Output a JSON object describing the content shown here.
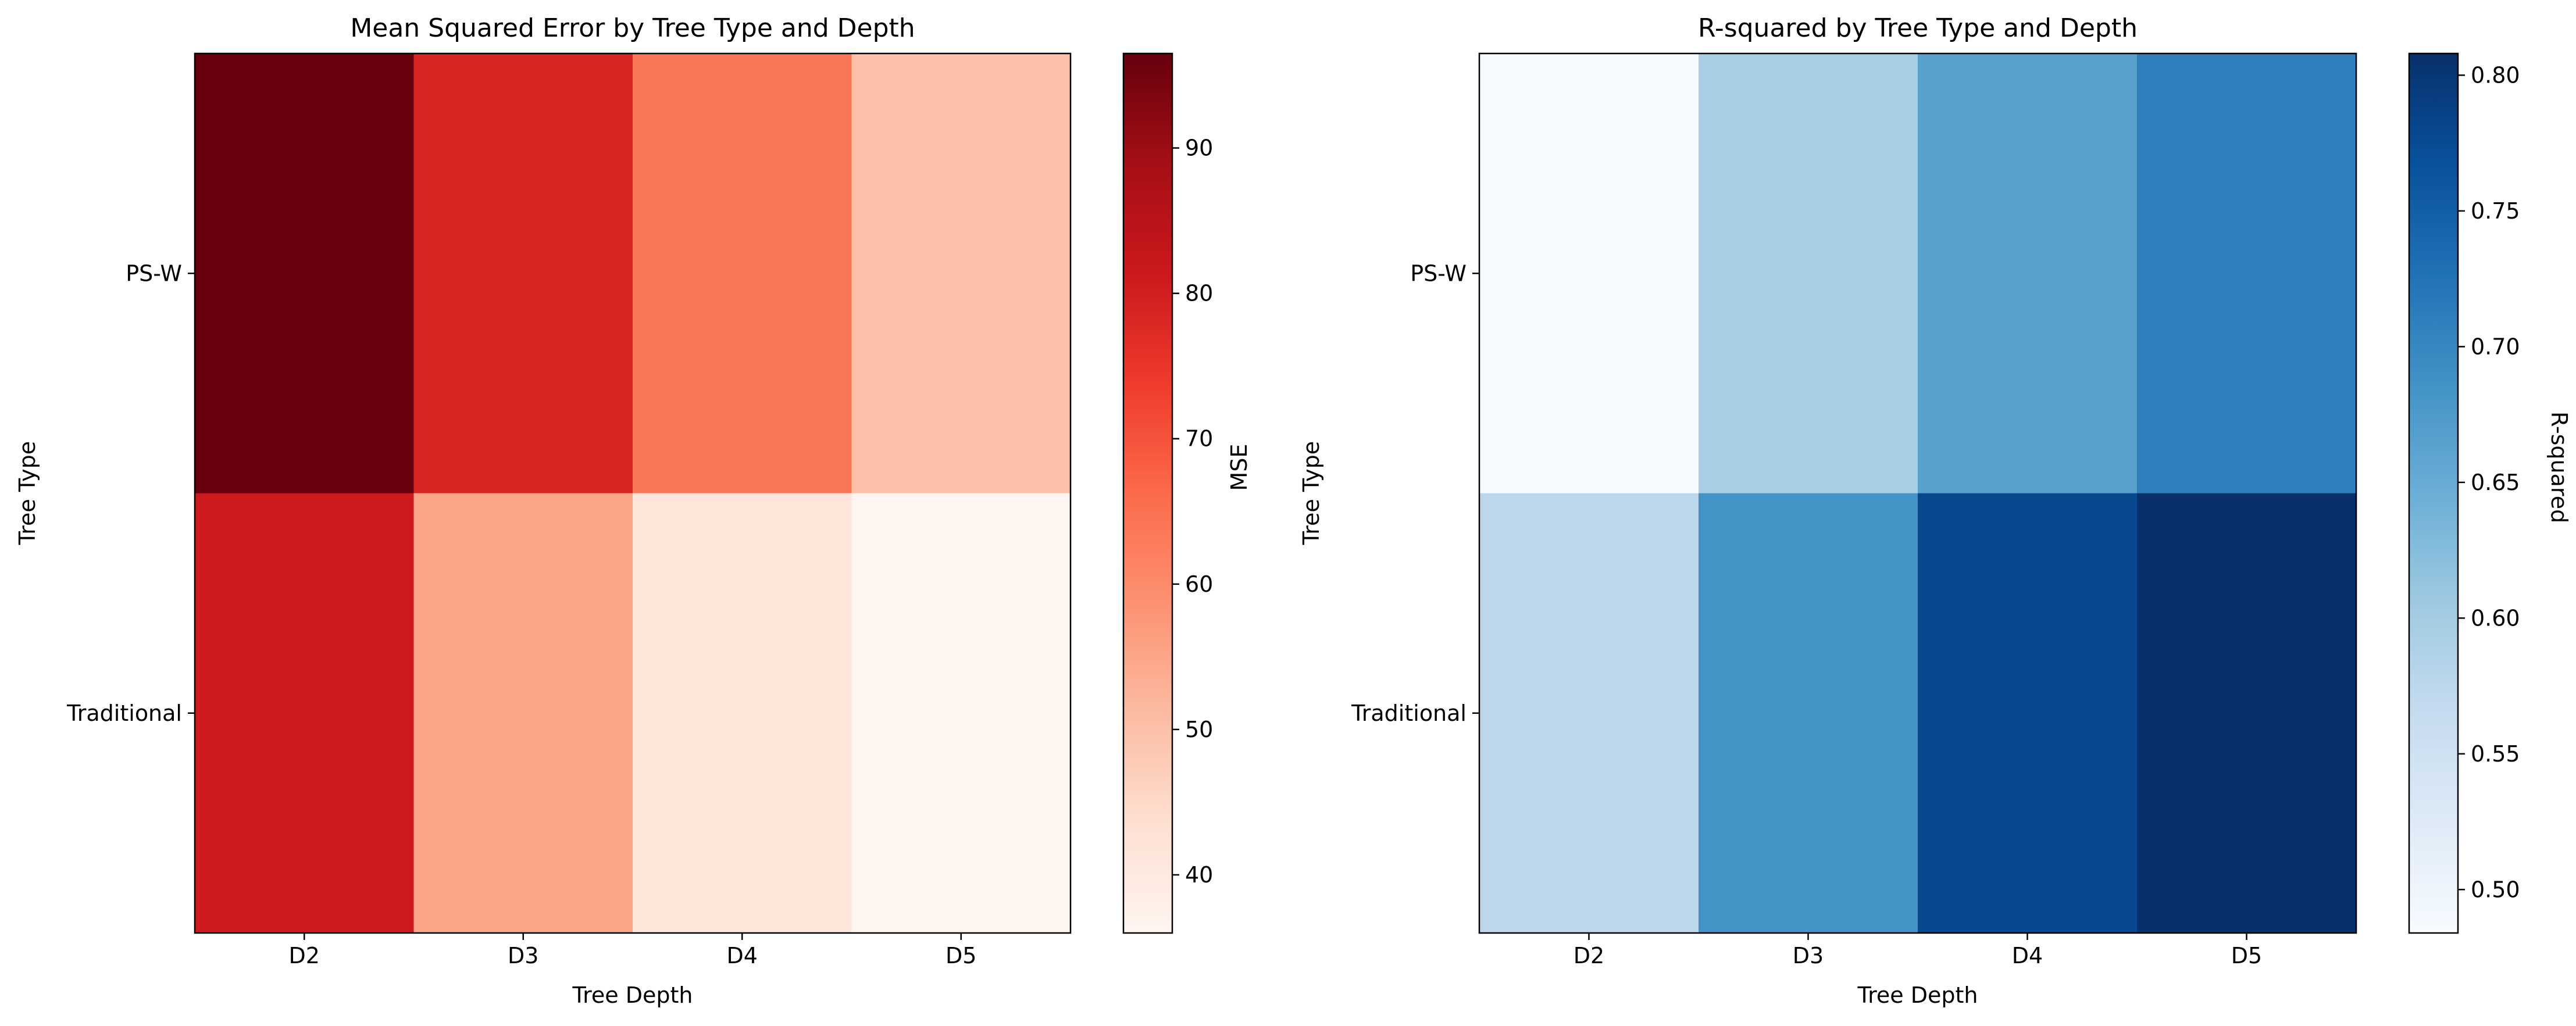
{
  "chart_data": [
    {
      "type": "heatmap",
      "title": "Mean Squared Error by Tree Type and Depth",
      "xlabel": "Tree Depth",
      "ylabel": "Tree Type",
      "x_categories": [
        "D2",
        "D3",
        "D4",
        "D5"
      ],
      "y_categories": [
        "PS-W",
        "Traditional"
      ],
      "values": [
        [
          96.5,
          78.5,
          64.0,
          50.0
        ],
        [
          81.0,
          55.0,
          41.5,
          36.0
        ]
      ],
      "colormap": "Reds",
      "colorbar": {
        "label": "MSE",
        "min": 36.0,
        "max": 96.5,
        "ticks": [
          40,
          50,
          60,
          70,
          80,
          90
        ],
        "tick_labels": [
          "40",
          "50",
          "60",
          "70",
          "80",
          "90"
        ]
      }
    },
    {
      "type": "heatmap",
      "title": "R-squared by Tree Type and Depth",
      "xlabel": "Tree Depth",
      "ylabel": "Tree Type",
      "x_categories": [
        "D2",
        "D3",
        "D4",
        "D5"
      ],
      "y_categories": [
        "PS-W",
        "Traditional"
      ],
      "values": [
        [
          0.484,
          0.595,
          0.665,
          0.71
        ],
        [
          0.575,
          0.685,
          0.778,
          0.808
        ]
      ],
      "colormap": "Blues",
      "colorbar": {
        "label": "R-squared",
        "min": 0.484,
        "max": 0.808,
        "ticks": [
          0.5,
          0.55,
          0.6,
          0.65,
          0.7,
          0.75,
          0.8
        ],
        "tick_labels": [
          "0.50",
          "0.55",
          "0.60",
          "0.65",
          "0.70",
          "0.75",
          "0.80"
        ]
      }
    }
  ]
}
